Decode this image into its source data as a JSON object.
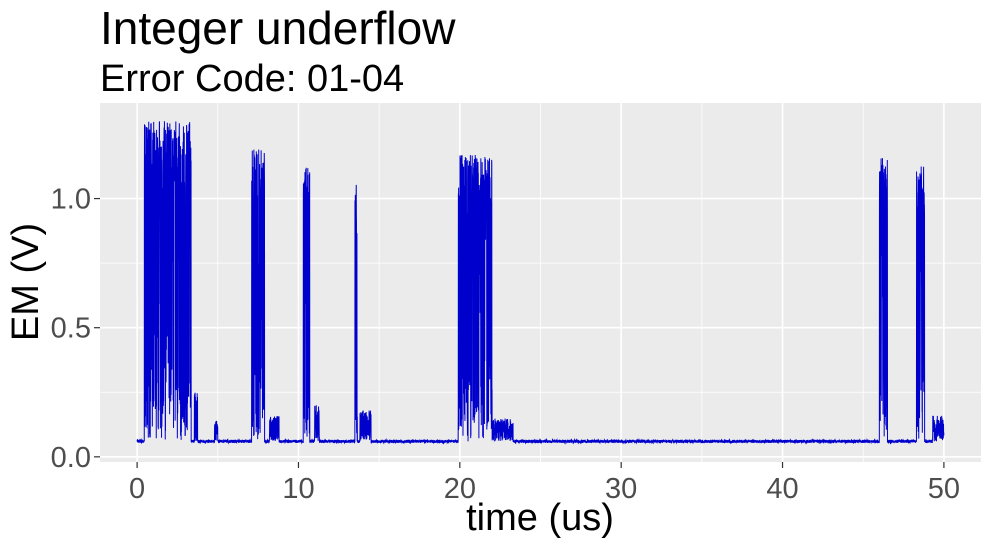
{
  "chart_data": {
    "type": "line",
    "title": "Integer underflow",
    "subtitle": "Error Code: 01-04",
    "xlabel": "time (us)",
    "ylabel": "EM (V)",
    "xlim": [
      -2.3,
      52.3
    ],
    "ylim": [
      -0.02,
      1.37
    ],
    "x_ticks": [
      0,
      10,
      20,
      30,
      40,
      50
    ],
    "y_ticks": [
      0.0,
      0.5,
      1.0
    ],
    "x_tick_labels": [
      "0",
      "10",
      "20",
      "30",
      "40",
      "50"
    ],
    "y_tick_labels": [
      "0.0",
      "0.5",
      "1.0"
    ],
    "grid": true,
    "legend": "none",
    "series_color": "#0000CC",
    "panel_color": "#EBEBEB",
    "baseline": 0.06,
    "bursts": [
      {
        "start": 0.45,
        "end": 3.35,
        "peak": 1.3
      },
      {
        "start": 3.55,
        "end": 3.75,
        "peak": 0.25
      },
      {
        "start": 4.8,
        "end": 5.0,
        "peak": 0.14
      },
      {
        "start": 7.1,
        "end": 7.9,
        "peak": 1.19
      },
      {
        "start": 8.2,
        "end": 8.8,
        "peak": 0.16
      },
      {
        "start": 10.3,
        "end": 10.7,
        "peak": 1.16
      },
      {
        "start": 11.0,
        "end": 11.3,
        "peak": 0.2
      },
      {
        "start": 13.5,
        "end": 13.65,
        "peak": 1.06
      },
      {
        "start": 13.8,
        "end": 14.5,
        "peak": 0.18
      },
      {
        "start": 19.9,
        "end": 22.0,
        "peak": 1.17
      },
      {
        "start": 22.0,
        "end": 23.3,
        "peak": 0.15
      },
      {
        "start": 46.0,
        "end": 46.5,
        "peak": 1.17
      },
      {
        "start": 48.3,
        "end": 48.8,
        "peak": 1.14
      },
      {
        "start": 49.3,
        "end": 50.0,
        "peak": 0.16
      }
    ]
  }
}
